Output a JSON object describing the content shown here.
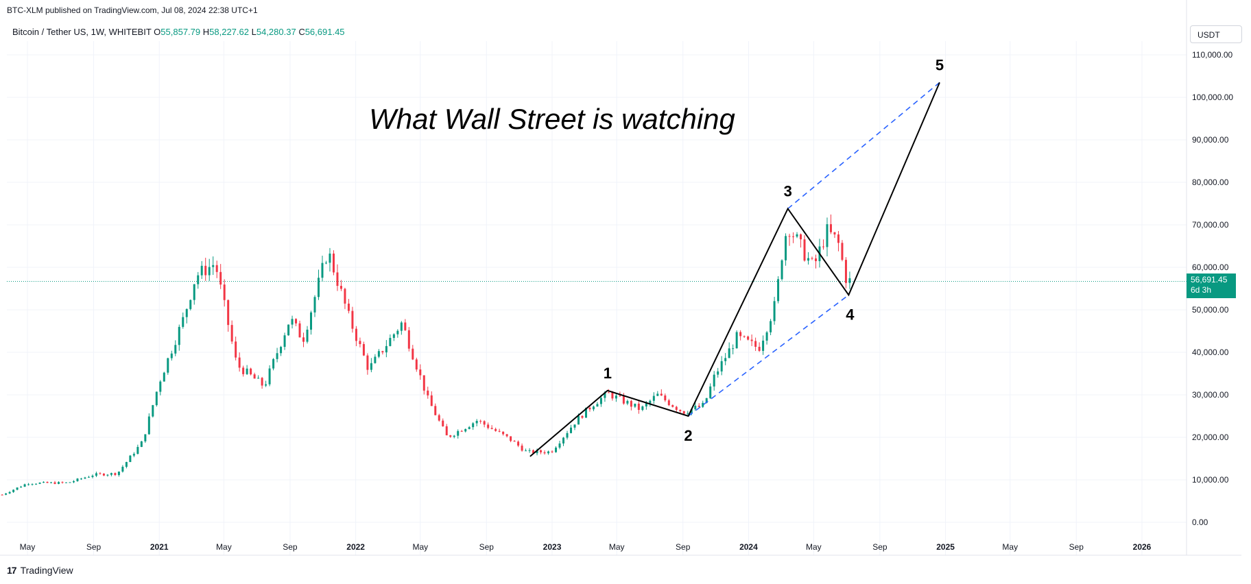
{
  "header": {
    "published": "BTC-XLM published on TradingView.com, Jul 08, 2024 22:38 UTC+1",
    "symbol": "Bitcoin / Tether US, 1W, WHITEBIT",
    "o_label": "O",
    "o_value": "55,857.79",
    "h_label": "H",
    "h_value": "58,227.62",
    "l_label": "L",
    "l_value": "54,280.37",
    "c_label": "C",
    "c_value": "56,691.45"
  },
  "currency": "USDT",
  "price_tag": {
    "price": "56,691.45",
    "countdown": "6d 3h"
  },
  "footer": {
    "brand": "TradingView",
    "logo": "17"
  },
  "colors": {
    "up": "#089981",
    "down": "#f23645",
    "projection": "#2962ff",
    "wave": "#000000"
  },
  "chart_data": {
    "type": "candlestick",
    "title": "What Wall Street is watching",
    "y_axis": {
      "min": 0,
      "max": 110000,
      "ticks": [
        0,
        10000,
        20000,
        30000,
        40000,
        50000,
        60000,
        70000,
        80000,
        90000,
        100000,
        110000
      ],
      "tick_labels": [
        "0.00",
        "10,000.00",
        "20,000.00",
        "30,000.00",
        "40,000.00",
        "50,000.00",
        "60,000.00",
        "70,000.00",
        "80,000.00",
        "90,000.00",
        "100,000.00",
        "110,000.00"
      ]
    },
    "x_axis": {
      "tick_labels": [
        "May",
        "Sep",
        "2021",
        "May",
        "Sep",
        "2022",
        "May",
        "Sep",
        "2023",
        "May",
        "Sep",
        "2024",
        "May",
        "Sep",
        "2025",
        "May",
        "Sep",
        "2026"
      ],
      "tick_dates": [
        "2020-05",
        "2020-09",
        "2021-01",
        "2021-05",
        "2021-09",
        "2022-01",
        "2022-05",
        "2022-09",
        "2023-01",
        "2023-05",
        "2023-09",
        "2024-01",
        "2024-05",
        "2024-09",
        "2025-01",
        "2025-05",
        "2025-09",
        "2026-01"
      ],
      "bold_ticks": [
        "2021",
        "2022",
        "2023",
        "2024",
        "2025",
        "2026"
      ]
    },
    "last_price": 56691.45,
    "price_path": [
      [
        "2020-03-15",
        6500
      ],
      [
        "2020-05-01",
        9200
      ],
      [
        "2020-07-15",
        9300
      ],
      [
        "2020-09-01",
        11200
      ],
      [
        "2020-10-15",
        11500
      ],
      [
        "2020-12-01",
        19000
      ],
      [
        "2021-01-01",
        33000
      ],
      [
        "2021-02-15",
        48000
      ],
      [
        "2021-03-10",
        58000
      ],
      [
        "2021-04-15",
        61000
      ],
      [
        "2021-05-25",
        37000
      ],
      [
        "2021-07-15",
        32000
      ],
      [
        "2021-09-01",
        48000
      ],
      [
        "2021-09-25",
        43000
      ],
      [
        "2021-11-10",
        64000
      ],
      [
        "2021-12-20",
        48000
      ],
      [
        "2022-01-25",
        36000
      ],
      [
        "2022-03-28",
        47000
      ],
      [
        "2022-05-15",
        29000
      ],
      [
        "2022-06-20",
        20000
      ],
      [
        "2022-08-15",
        24000
      ],
      [
        "2022-10-15",
        19500
      ],
      [
        "2022-11-15",
        16500
      ],
      [
        "2022-12-30",
        16600
      ],
      [
        "2023-02-15",
        24000
      ],
      [
        "2023-03-20",
        28000
      ],
      [
        "2023-04-15",
        30300
      ],
      [
        "2023-06-15",
        26500
      ],
      [
        "2023-07-15",
        30000
      ],
      [
        "2023-09-01",
        26000
      ],
      [
        "2023-10-10",
        27500
      ],
      [
        "2023-10-30",
        34500
      ],
      [
        "2023-12-10",
        43500
      ],
      [
        "2024-01-20",
        41000
      ],
      [
        "2024-02-20",
        51500
      ],
      [
        "2024-03-05",
        65000
      ],
      [
        "2024-03-14",
        70000
      ],
      [
        "2024-04-15",
        63000
      ],
      [
        "2024-05-01",
        60000
      ],
      [
        "2024-05-25",
        68500
      ],
      [
        "2024-06-15",
        66000
      ],
      [
        "2024-07-01",
        57000
      ],
      [
        "2024-07-08",
        56691
      ]
    ],
    "annotations": {
      "waves": [
        {
          "label": "",
          "date": "2022-11-21",
          "price": 15500
        },
        {
          "label": "1",
          "date": "2023-04-14",
          "price": 31000
        },
        {
          "label": "2",
          "date": "2023-09-11",
          "price": 25000
        },
        {
          "label": "3",
          "date": "2024-03-14",
          "price": 73800
        },
        {
          "label": "4",
          "date": "2024-07-05",
          "price": 53500
        },
        {
          "label": "5",
          "date": "2024-12-21",
          "price": 103500
        }
      ],
      "projection_lines": [
        {
          "from": {
            "date": "2023-09-11",
            "price": 25000
          },
          "to": {
            "date": "2024-07-05",
            "price": 53500
          }
        },
        {
          "from": {
            "date": "2024-03-14",
            "price": 73800
          },
          "to": {
            "date": "2024-12-21",
            "price": 103500
          }
        }
      ]
    }
  }
}
